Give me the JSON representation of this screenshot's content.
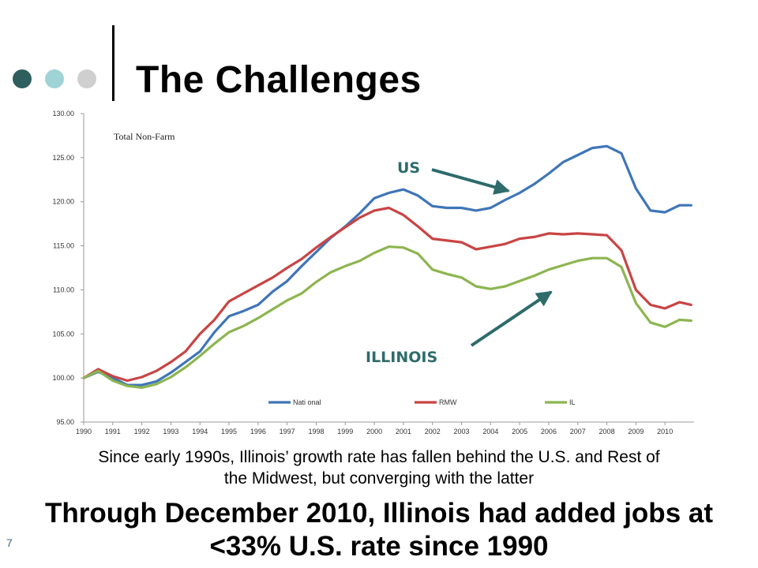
{
  "slide": {
    "title": "The Challenges",
    "caption_lines": [
      "Since early 1990s, Illinois’ growth rate has fallen behind the U.S. and Rest of",
      "the Midwest, but converging with the latter"
    ],
    "headline_lines": [
      "Through December 2010, Illinois had added jobs at",
      "<33% U.S. rate since 1990"
    ],
    "page_number": "7",
    "dot_colors": [
      "#2e5e5e",
      "#9fd3d6",
      "#cfcfcf"
    ]
  },
  "chart_data": {
    "type": "line",
    "title": "Total Non-Farm",
    "xlabel": "",
    "ylabel": "",
    "ylim": [
      95,
      130
    ],
    "xlim": [
      1990,
      2011
    ],
    "y_ticks": [
      "95.00",
      "100.00",
      "105.00",
      "110.00",
      "115.00",
      "120.00",
      "125.00",
      "130.00"
    ],
    "x_ticks": [
      "1990",
      "1991",
      "1992",
      "1993",
      "1994",
      "1995",
      "1996",
      "1997",
      "1998",
      "1999",
      "2000",
      "2001",
      "2002",
      "2003",
      "2004",
      "2005",
      "2006",
      "2007",
      "2008",
      "2009",
      "2010"
    ],
    "grid": false,
    "legend_position": "bottom",
    "x": [
      1990.0,
      1990.5,
      1991.0,
      1991.5,
      1992.0,
      1992.5,
      1993.0,
      1993.5,
      1994.0,
      1994.5,
      1995.0,
      1995.5,
      1996.0,
      1996.5,
      1997.0,
      1997.5,
      1998.0,
      1998.5,
      1999.0,
      1999.5,
      2000.0,
      2000.5,
      2001.0,
      2001.5,
      2002.0,
      2002.5,
      2003.0,
      2003.5,
      2004.0,
      2004.5,
      2005.0,
      2005.5,
      2006.0,
      2006.5,
      2007.0,
      2007.5,
      2008.0,
      2008.5,
      2009.0,
      2009.5,
      2010.0,
      2010.5,
      2010.9
    ],
    "series": [
      {
        "name": "Nati  onal",
        "color": "#3f75b8",
        "values": [
          100.0,
          100.7,
          100.0,
          99.2,
          99.2,
          99.6,
          100.6,
          101.8,
          103.0,
          105.2,
          107.0,
          107.6,
          108.3,
          109.8,
          111.0,
          112.7,
          114.3,
          115.9,
          117.2,
          118.7,
          120.4,
          121.0,
          121.4,
          120.7,
          119.5,
          119.3,
          119.3,
          119.0,
          119.3,
          120.2,
          121.0,
          122.0,
          123.2,
          124.5,
          125.3,
          126.1,
          126.3,
          125.5,
          121.5,
          119.0,
          118.8,
          119.6,
          119.6
        ]
      },
      {
        "name": "RMW",
        "color": "#c94444",
        "values": [
          100.0,
          101.0,
          100.2,
          99.7,
          100.1,
          100.8,
          101.8,
          103.0,
          105.0,
          106.6,
          108.7,
          109.6,
          110.5,
          111.4,
          112.5,
          113.5,
          114.8,
          116.0,
          117.1,
          118.2,
          119.0,
          119.3,
          118.5,
          117.2,
          115.8,
          115.6,
          115.4,
          114.6,
          114.9,
          115.2,
          115.8,
          116.0,
          116.4,
          116.3,
          116.4,
          116.3,
          116.2,
          114.5,
          110.0,
          108.3,
          107.9,
          108.6,
          108.3
        ]
      },
      {
        "name": "IL",
        "color": "#8cb550",
        "values": [
          100.0,
          100.8,
          99.7,
          99.1,
          98.9,
          99.3,
          100.1,
          101.2,
          102.5,
          103.9,
          105.2,
          105.9,
          106.8,
          107.8,
          108.8,
          109.6,
          110.9,
          112.0,
          112.7,
          113.3,
          114.2,
          114.9,
          114.8,
          114.1,
          112.3,
          111.8,
          111.4,
          110.4,
          110.1,
          110.4,
          111.0,
          111.6,
          112.3,
          112.8,
          113.3,
          113.6,
          113.6,
          112.6,
          108.5,
          106.3,
          105.8,
          106.6,
          106.5
        ]
      }
    ],
    "annotations": [
      {
        "text": "US",
        "color": "#2e6b6b"
      },
      {
        "text": "ILLINOIS",
        "color": "#2e6b6b"
      }
    ]
  }
}
